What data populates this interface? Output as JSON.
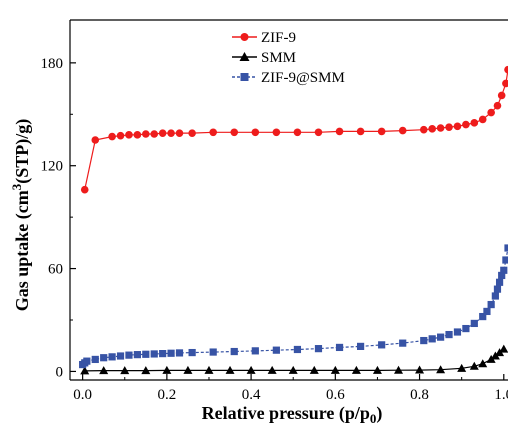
{
  "chart_data": {
    "type": "scatter",
    "xlabel_main": "Relative pressure (p/p",
    "xlabel_sub": "0",
    "xlabel_close": ")",
    "ylabel_main": "Gas uptake  (cm",
    "ylabel_sup": "3",
    "ylabel_rest": "(STP)/g)",
    "xlim": [
      -0.03,
      1.01
    ],
    "ylim": [
      -5,
      205
    ],
    "x_ticks": [
      "0.0",
      "0.2",
      "0.4",
      "0.6",
      "0.8",
      "1.0"
    ],
    "y_ticks": [
      "0",
      "60",
      "120",
      "180"
    ],
    "legend_position": "top-center",
    "series": [
      {
        "name": "ZIF-9",
        "color": "#ee1c1c",
        "marker": "circle",
        "x": [
          0.005,
          0.03,
          0.07,
          0.09,
          0.11,
          0.13,
          0.15,
          0.17,
          0.19,
          0.21,
          0.23,
          0.26,
          0.31,
          0.36,
          0.41,
          0.46,
          0.51,
          0.56,
          0.61,
          0.66,
          0.71,
          0.76,
          0.81,
          0.83,
          0.85,
          0.87,
          0.89,
          0.91,
          0.93,
          0.95,
          0.97,
          0.985,
          0.995,
          1.005,
          1.01
        ],
        "y": [
          106,
          135,
          137,
          137.5,
          138,
          138,
          138.5,
          138.5,
          139,
          139,
          139,
          139,
          139.5,
          139.5,
          139.5,
          139.5,
          139.5,
          139.5,
          140,
          140,
          140,
          140.5,
          141,
          141.5,
          142,
          142.5,
          143,
          144,
          145,
          147,
          151,
          155,
          161,
          168,
          176
        ]
      },
      {
        "name": "SMM",
        "color": "#000000",
        "marker": "triangle",
        "x": [
          0.005,
          0.05,
          0.1,
          0.15,
          0.2,
          0.25,
          0.3,
          0.35,
          0.4,
          0.45,
          0.5,
          0.55,
          0.6,
          0.65,
          0.7,
          0.75,
          0.8,
          0.85,
          0.9,
          0.93,
          0.95,
          0.97,
          0.98,
          0.99,
          1.0
        ],
        "y": [
          0.3,
          0.5,
          0.5,
          0.5,
          0.6,
          0.6,
          0.6,
          0.6,
          0.6,
          0.6,
          0.6,
          0.6,
          0.6,
          0.6,
          0.6,
          0.7,
          0.8,
          1.0,
          1.8,
          3.0,
          4.5,
          7.0,
          9.0,
          11.0,
          13.0
        ]
      },
      {
        "name": "ZIF-9@SMM",
        "color": "#3753a5",
        "marker": "square",
        "x": [
          0.0,
          0.005,
          0.01,
          0.03,
          0.05,
          0.07,
          0.09,
          0.11,
          0.13,
          0.15,
          0.17,
          0.19,
          0.21,
          0.23,
          0.26,
          0.31,
          0.36,
          0.41,
          0.46,
          0.51,
          0.56,
          0.61,
          0.66,
          0.71,
          0.76,
          0.81,
          0.83,
          0.85,
          0.87,
          0.89,
          0.91,
          0.93,
          0.95,
          0.96,
          0.97,
          0.98,
          0.985,
          0.99,
          0.995,
          1.0,
          1.005,
          1.01
        ],
        "y": [
          4,
          5,
          6,
          7,
          8,
          8.5,
          9,
          9.5,
          9.8,
          10,
          10.2,
          10.4,
          10.6,
          10.8,
          11,
          11.3,
          11.6,
          12,
          12.4,
          12.8,
          13.3,
          14,
          14.6,
          15.5,
          16.5,
          18,
          19,
          20,
          21.5,
          23,
          25,
          28,
          32,
          35,
          39,
          44,
          48,
          52,
          56,
          59,
          65,
          72
        ]
      }
    ]
  }
}
